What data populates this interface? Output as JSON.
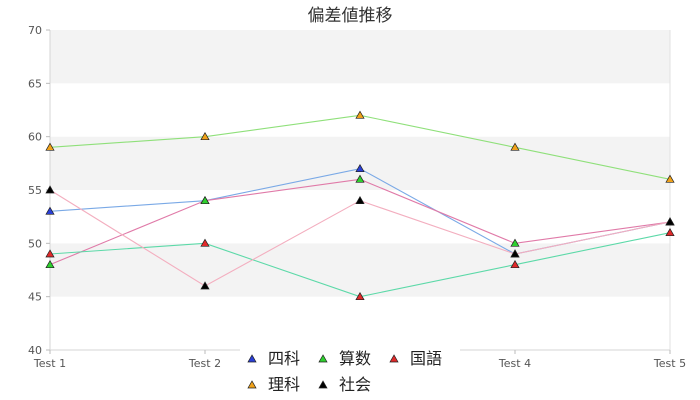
{
  "chart_data": {
    "type": "line",
    "title": "偏差値推移",
    "categories": [
      "Test 1",
      "Test 2",
      "Test 3",
      "Test 4",
      "Test 5"
    ],
    "ylim": [
      40,
      70
    ],
    "yticks": [
      40,
      45,
      50,
      55,
      60,
      65,
      70
    ],
    "grid": "alternating horizontal bands",
    "legend_placement": "bottom-center",
    "series": [
      {
        "name": "四科",
        "values": [
          53,
          54,
          57,
          49,
          52
        ],
        "line_color": "#7aa9e6",
        "marker_color": "#2a3fd6"
      },
      {
        "name": "算数",
        "values": [
          48,
          54,
          56,
          50,
          52
        ],
        "line_color": "#e07aa8",
        "marker_color": "#2ed02e"
      },
      {
        "name": "国語",
        "values": [
          49,
          50,
          45,
          48,
          51
        ],
        "line_color": "#5cd9a8",
        "marker_color": "#e02a2a"
      },
      {
        "name": "理科",
        "values": [
          59,
          60,
          62,
          59,
          56
        ],
        "line_color": "#8fe07a",
        "marker_color": "#f0a21a"
      },
      {
        "name": "社会",
        "values": [
          55,
          46,
          54,
          49,
          52
        ],
        "line_color": "#f3aebf",
        "marker_color": "#000000"
      }
    ]
  }
}
